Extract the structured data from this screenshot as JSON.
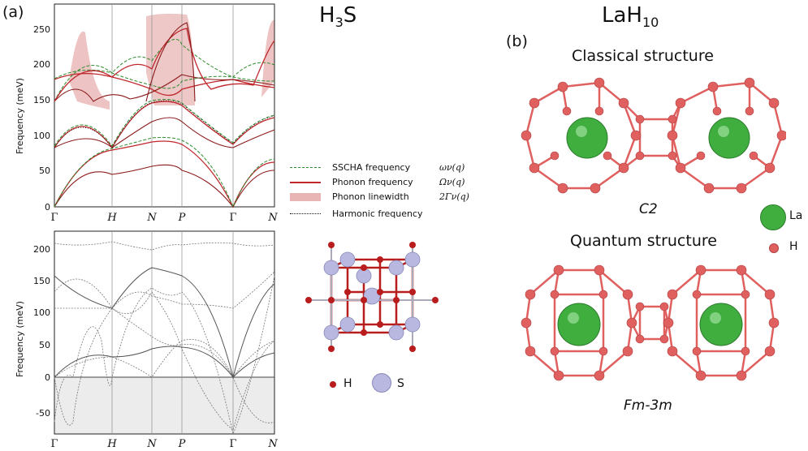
{
  "panel_a_label": "(a)",
  "panel_b_label": "(b)",
  "h3s_title": {
    "base": "H",
    "sub": "3",
    "tail": "S"
  },
  "lah10_title": {
    "base": "LaH",
    "sub": "10"
  },
  "top_plot": {
    "ylabel": "Frequency (meV)",
    "yticks": [
      "0",
      "50",
      "100",
      "150",
      "200",
      "250"
    ],
    "xticks": [
      "Γ",
      "H",
      "N",
      "P",
      "Γ",
      "N"
    ]
  },
  "bottom_plot": {
    "ylabel": "Frequency (meV)",
    "yticks": [
      "-50",
      "0",
      "50",
      "100",
      "150",
      "200"
    ],
    "xticks": [
      "Γ",
      "H",
      "N",
      "P",
      "Γ",
      "N"
    ]
  },
  "legend": [
    {
      "label": "SSCHA frequency",
      "math": "ων(q)",
      "style": "dashed-green"
    },
    {
      "label": "Phonon frequency",
      "math": "Ων(q)",
      "style": "solid-red"
    },
    {
      "label": "Phonon linewidth",
      "math": "2Γν(q)",
      "style": "band-pink"
    },
    {
      "label": "Harmonic frequency",
      "math": "",
      "style": "dotted-black"
    }
  ],
  "h3s_atoms": {
    "h": "H",
    "s": "S"
  },
  "classical_title": "Classical structure",
  "classical_group": "C2",
  "quantum_title": "Quantum structure",
  "quantum_group": "Fm-3m",
  "lah10_atoms": {
    "la": "La",
    "h": "H"
  },
  "colors": {
    "sscha": "#2e8b2e",
    "phonon": "#c0272d",
    "linewidth": "#e8b4b4",
    "la": "#3fae3f",
    "h": "#e06060",
    "s": "#b8b8e0",
    "h_h3s": "#b81c1c"
  }
}
